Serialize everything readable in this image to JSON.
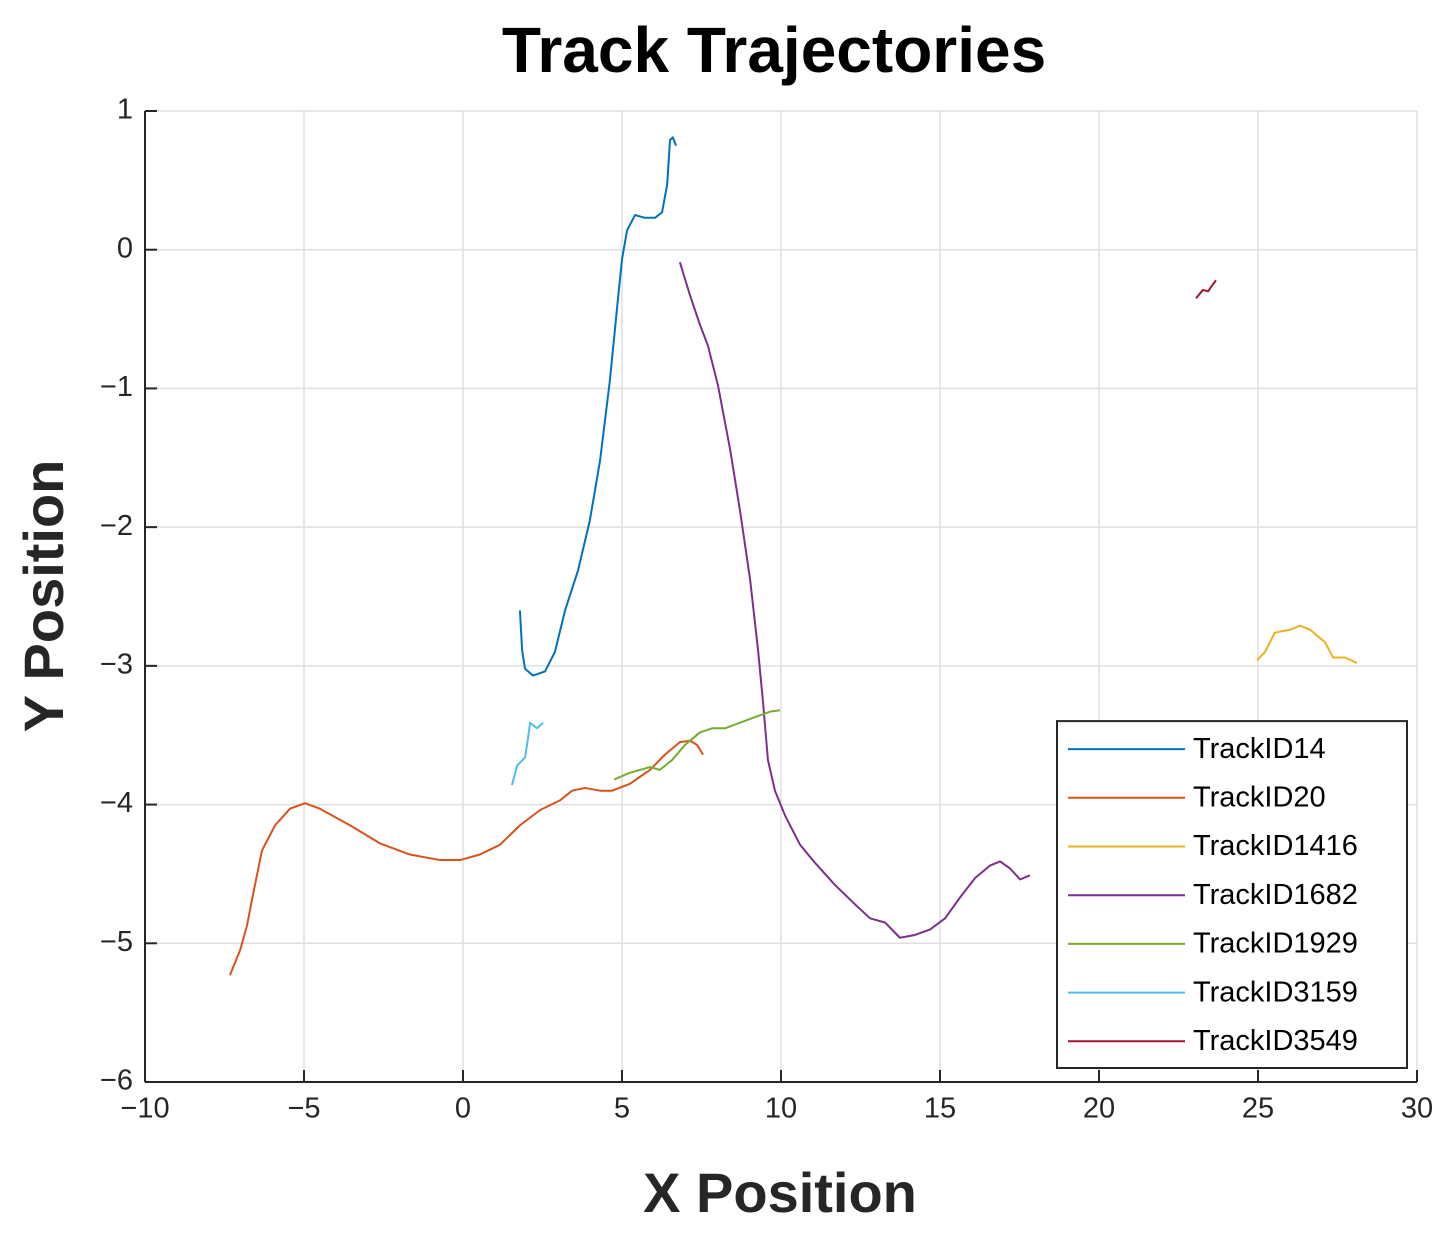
{
  "chart_data": {
    "type": "line",
    "title": "Track Trajectories",
    "xlabel": "X Position",
    "ylabel": "Y Position",
    "xlim": [
      -10,
      30
    ],
    "ylim": [
      -6,
      1
    ],
    "xticks": [
      {
        "value": -10,
        "label": "−10"
      },
      {
        "value": -5,
        "label": "−5"
      },
      0,
      5,
      10,
      15,
      20,
      25,
      30
    ],
    "yticks": [
      {
        "value": -6,
        "label": "−6"
      },
      {
        "value": -5,
        "label": "−5"
      },
      {
        "value": -4,
        "label": "−4"
      },
      {
        "value": -3,
        "label": "−3"
      },
      {
        "value": -2,
        "label": "−2"
      },
      {
        "value": -1,
        "label": "−1"
      },
      0,
      1
    ],
    "grid": true,
    "legend": "southeast",
    "series": [
      {
        "name": "TrackID14",
        "color": "#0072bd",
        "x": [
          1.79,
          1.86,
          1.95,
          2.2,
          2.58,
          2.89,
          3.21,
          3.62,
          3.99,
          4.31,
          4.62,
          4.84,
          5.0,
          5.16,
          5.41,
          5.72,
          6.04,
          6.26,
          6.42,
          6.51,
          6.6,
          6.7
        ],
        "values": [
          -2.6,
          -2.89,
          -3.02,
          -3.07,
          -3.04,
          -2.9,
          -2.6,
          -2.31,
          -1.95,
          -1.52,
          -0.94,
          -0.43,
          -0.07,
          0.14,
          0.25,
          0.23,
          0.23,
          0.27,
          0.47,
          0.79,
          0.81,
          0.75
        ]
      },
      {
        "name": "TrackID20",
        "color": "#d95319",
        "x": [
          -7.33,
          -7.01,
          -6.79,
          -6.64,
          -6.32,
          -5.91,
          -5.44,
          -4.97,
          -4.5,
          -3.55,
          -2.61,
          -1.67,
          -0.72,
          -0.09,
          0.53,
          1.16,
          1.79,
          2.42,
          3.05,
          3.43,
          3.84,
          4.31,
          4.69,
          5.25,
          5.88,
          6.35,
          6.82,
          7.14,
          7.36,
          7.55
        ],
        "values": [
          -5.23,
          -5.05,
          -4.87,
          -4.69,
          -4.33,
          -4.15,
          -4.03,
          -3.99,
          -4.03,
          -4.15,
          -4.28,
          -4.36,
          -4.4,
          -4.4,
          -4.36,
          -4.29,
          -4.15,
          -4.04,
          -3.97,
          -3.9,
          -3.88,
          -3.9,
          -3.9,
          -3.85,
          -3.75,
          -3.64,
          -3.55,
          -3.54,
          -3.57,
          -3.64
        ]
      },
      {
        "name": "TrackID1416",
        "color": "#edb120",
        "x": [
          24.97,
          25.22,
          25.53,
          26.01,
          26.32,
          26.64,
          27.11,
          27.36,
          27.74,
          28.11
        ],
        "values": [
          -2.96,
          -2.9,
          -2.76,
          -2.74,
          -2.71,
          -2.74,
          -2.83,
          -2.94,
          -2.94,
          -2.98
        ]
      },
      {
        "name": "TrackID1682",
        "color": "#7e2f8e",
        "x": [
          6.82,
          7.14,
          7.45,
          7.7,
          8.02,
          8.4,
          8.71,
          9.03,
          9.28,
          9.43,
          9.59,
          9.81,
          10.13,
          10.6,
          11.07,
          11.7,
          12.33,
          12.8,
          13.27,
          13.74,
          14.21,
          14.69,
          15.16,
          15.63,
          16.1,
          16.57,
          16.89,
          17.2,
          17.52,
          17.83
        ],
        "values": [
          -0.09,
          -0.33,
          -0.54,
          -0.69,
          -0.98,
          -1.44,
          -1.88,
          -2.38,
          -2.89,
          -3.25,
          -3.68,
          -3.9,
          -4.08,
          -4.29,
          -4.42,
          -4.58,
          -4.72,
          -4.82,
          -4.85,
          -4.96,
          -4.94,
          -4.9,
          -4.82,
          -4.67,
          -4.53,
          -4.44,
          -4.41,
          -4.46,
          -4.54,
          -4.51
        ]
      },
      {
        "name": "TrackID1929",
        "color": "#77ac30",
        "x": [
          4.75,
          5.25,
          5.88,
          6.19,
          6.57,
          6.98,
          7.45,
          7.83,
          8.24,
          8.71,
          9.18,
          9.65,
          9.97
        ],
        "values": [
          -3.82,
          -3.77,
          -3.73,
          -3.75,
          -3.68,
          -3.57,
          -3.48,
          -3.45,
          -3.45,
          -3.41,
          -3.37,
          -3.33,
          -3.32
        ]
      },
      {
        "name": "TrackID3159",
        "color": "#4dbeee",
        "x": [
          1.54,
          1.7,
          1.95,
          2.04,
          2.11,
          2.33,
          2.52
        ],
        "values": [
          -3.86,
          -3.72,
          -3.66,
          -3.53,
          -3.41,
          -3.45,
          -3.41
        ]
      },
      {
        "name": "TrackID3549",
        "color": "#a2142f",
        "x": [
          23.05,
          23.27,
          23.43,
          23.58,
          23.68
        ],
        "values": [
          -0.35,
          -0.29,
          -0.3,
          -0.25,
          -0.22
        ]
      }
    ]
  }
}
